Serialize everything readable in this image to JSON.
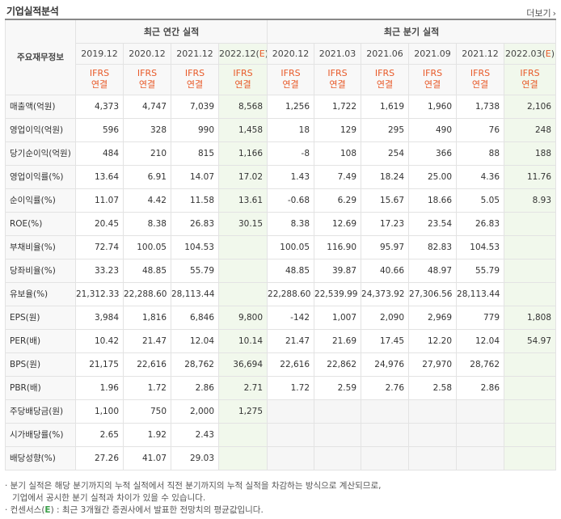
{
  "header": {
    "title": "기업실적분석",
    "more_label": "더보기",
    "more_arrow": "›"
  },
  "columns": {
    "row_header": "주요재무정보",
    "annual_group": "최근 연간 실적",
    "quarter_group": "최근 분기 실적",
    "periods": [
      "2019.12",
      "2020.12",
      "2021.12",
      "2022.12(E)",
      "2020.12",
      "2021.03",
      "2021.06",
      "2021.09",
      "2021.12",
      "2022.03(E)"
    ],
    "ifrs_line1": "IFRS",
    "ifrs_line2": "연결"
  },
  "rows": [
    {
      "label": "매출액(억원)",
      "values": [
        "4,373",
        "4,747",
        "7,039",
        "8,568",
        "1,256",
        "1,722",
        "1,619",
        "1,960",
        "1,738",
        "2,106"
      ]
    },
    {
      "label": "영업이익(억원)",
      "values": [
        "596",
        "328",
        "990",
        "1,458",
        "18",
        "129",
        "295",
        "490",
        "76",
        "248"
      ]
    },
    {
      "label": "당기순이익(억원)",
      "values": [
        "484",
        "210",
        "815",
        "1,166",
        "-8",
        "108",
        "254",
        "366",
        "88",
        "188"
      ]
    },
    {
      "label": "영업이익률(%)",
      "values": [
        "13.64",
        "6.91",
        "14.07",
        "17.02",
        "1.43",
        "7.49",
        "18.24",
        "25.00",
        "4.36",
        "11.76"
      ]
    },
    {
      "label": "순이익률(%)",
      "values": [
        "11.07",
        "4.42",
        "11.58",
        "13.61",
        "-0.68",
        "6.29",
        "15.67",
        "18.66",
        "5.05",
        "8.93"
      ]
    },
    {
      "label": "ROE(%)",
      "values": [
        "20.45",
        "8.38",
        "26.83",
        "30.15",
        "8.38",
        "12.69",
        "17.23",
        "23.54",
        "26.83",
        ""
      ]
    },
    {
      "label": "부채비율(%)",
      "values": [
        "72.74",
        "100.05",
        "104.53",
        "",
        "100.05",
        "116.90",
        "95.97",
        "82.83",
        "104.53",
        ""
      ]
    },
    {
      "label": "당좌비율(%)",
      "values": [
        "33.23",
        "48.85",
        "55.79",
        "",
        "48.85",
        "39.87",
        "40.66",
        "48.97",
        "55.79",
        ""
      ]
    },
    {
      "label": "유보율(%)",
      "values": [
        "21,312.33",
        "22,288.60",
        "28,113.44",
        "",
        "22,288.60",
        "22,539.99",
        "24,373.92",
        "27,306.56",
        "28,113.44",
        ""
      ]
    },
    {
      "label": "EPS(원)",
      "values": [
        "3,984",
        "1,816",
        "6,846",
        "9,800",
        "-142",
        "1,007",
        "2,090",
        "2,969",
        "779",
        "1,808"
      ]
    },
    {
      "label": "PER(배)",
      "values": [
        "10.42",
        "21.47",
        "12.04",
        "10.14",
        "21.47",
        "21.69",
        "17.45",
        "12.20",
        "12.04",
        "54.97"
      ]
    },
    {
      "label": "BPS(원)",
      "values": [
        "21,175",
        "22,616",
        "28,762",
        "36,694",
        "22,616",
        "22,862",
        "24,976",
        "27,970",
        "28,762",
        ""
      ]
    },
    {
      "label": "PBR(배)",
      "values": [
        "1.96",
        "1.72",
        "2.86",
        "2.71",
        "1.72",
        "2.59",
        "2.76",
        "2.58",
        "2.86",
        ""
      ]
    },
    {
      "label": "주당배당금(원)",
      "values": [
        "1,100",
        "750",
        "2,000",
        "1,275",
        "",
        "",
        "",
        "",
        "",
        ""
      ]
    },
    {
      "label": "시가배당률(%)",
      "values": [
        "2.65",
        "1.92",
        "2.43",
        "",
        "",
        "",
        "",
        "",
        "",
        ""
      ]
    },
    {
      "label": "배당성향(%)",
      "values": [
        "27.26",
        "41.07",
        "29.03",
        "",
        "",
        "",
        "",
        "",
        "",
        ""
      ]
    }
  ],
  "notes": {
    "line1": "· 분기 실적은 해당 분기까지의 누적 실적에서 직전 분기까지의 누적 실적을 차감하는 방식으로 계산되므로,",
    "line2": "기업에서 공시한 분기 실적과 차이가 있을 수 있습니다.",
    "line3_prefix": "· 컨센서스(",
    "line3_e": "E",
    "line3_suffix": ") : 최근 3개월간 증권사에서 발표한 전망치의 평균값입니다."
  },
  "colors": {
    "negative": "#e0261b",
    "ifrs": "#e85a29",
    "estimate_bg": "#f1f8ec",
    "estimate_mark": "#3aa04a"
  }
}
